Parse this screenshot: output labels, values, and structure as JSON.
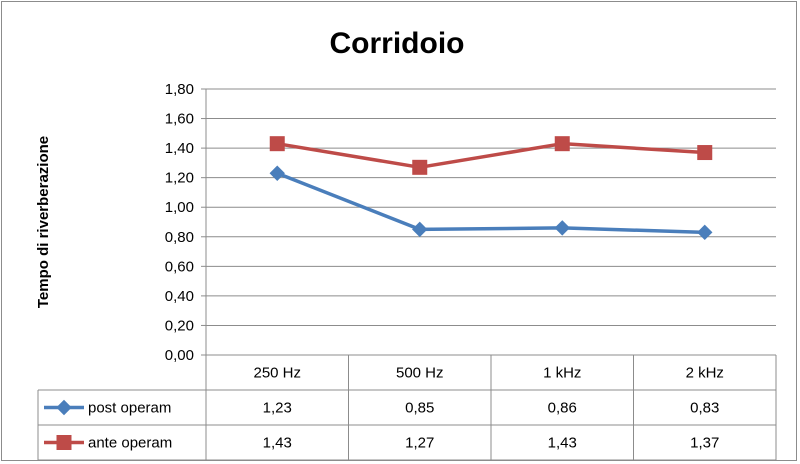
{
  "chart_data": {
    "type": "line",
    "title": "Corridoio",
    "ylabel": "Tempo di riverberazione",
    "xlabel": "",
    "categories": [
      "250 Hz",
      "500 Hz",
      "1 kHz",
      "2 kHz"
    ],
    "ylim": [
      0,
      1.8
    ],
    "yticks": [
      "0,00",
      "0,20",
      "0,40",
      "0,60",
      "0,80",
      "1,00",
      "1,20",
      "1,40",
      "1,60",
      "1,80"
    ],
    "grid": true,
    "legend": "data-table",
    "series": [
      {
        "name": "post operam",
        "color": "#4a7ebb",
        "marker": "diamond",
        "values": [
          1.23,
          0.85,
          0.86,
          0.83
        ],
        "labels": [
          "1,23",
          "0,85",
          "0,86",
          "0,83"
        ]
      },
      {
        "name": "ante operam",
        "color": "#be4b48",
        "marker": "square",
        "values": [
          1.43,
          1.27,
          1.43,
          1.37
        ],
        "labels": [
          "1,43",
          "1,27",
          "1,43",
          "1,37"
        ]
      }
    ]
  }
}
